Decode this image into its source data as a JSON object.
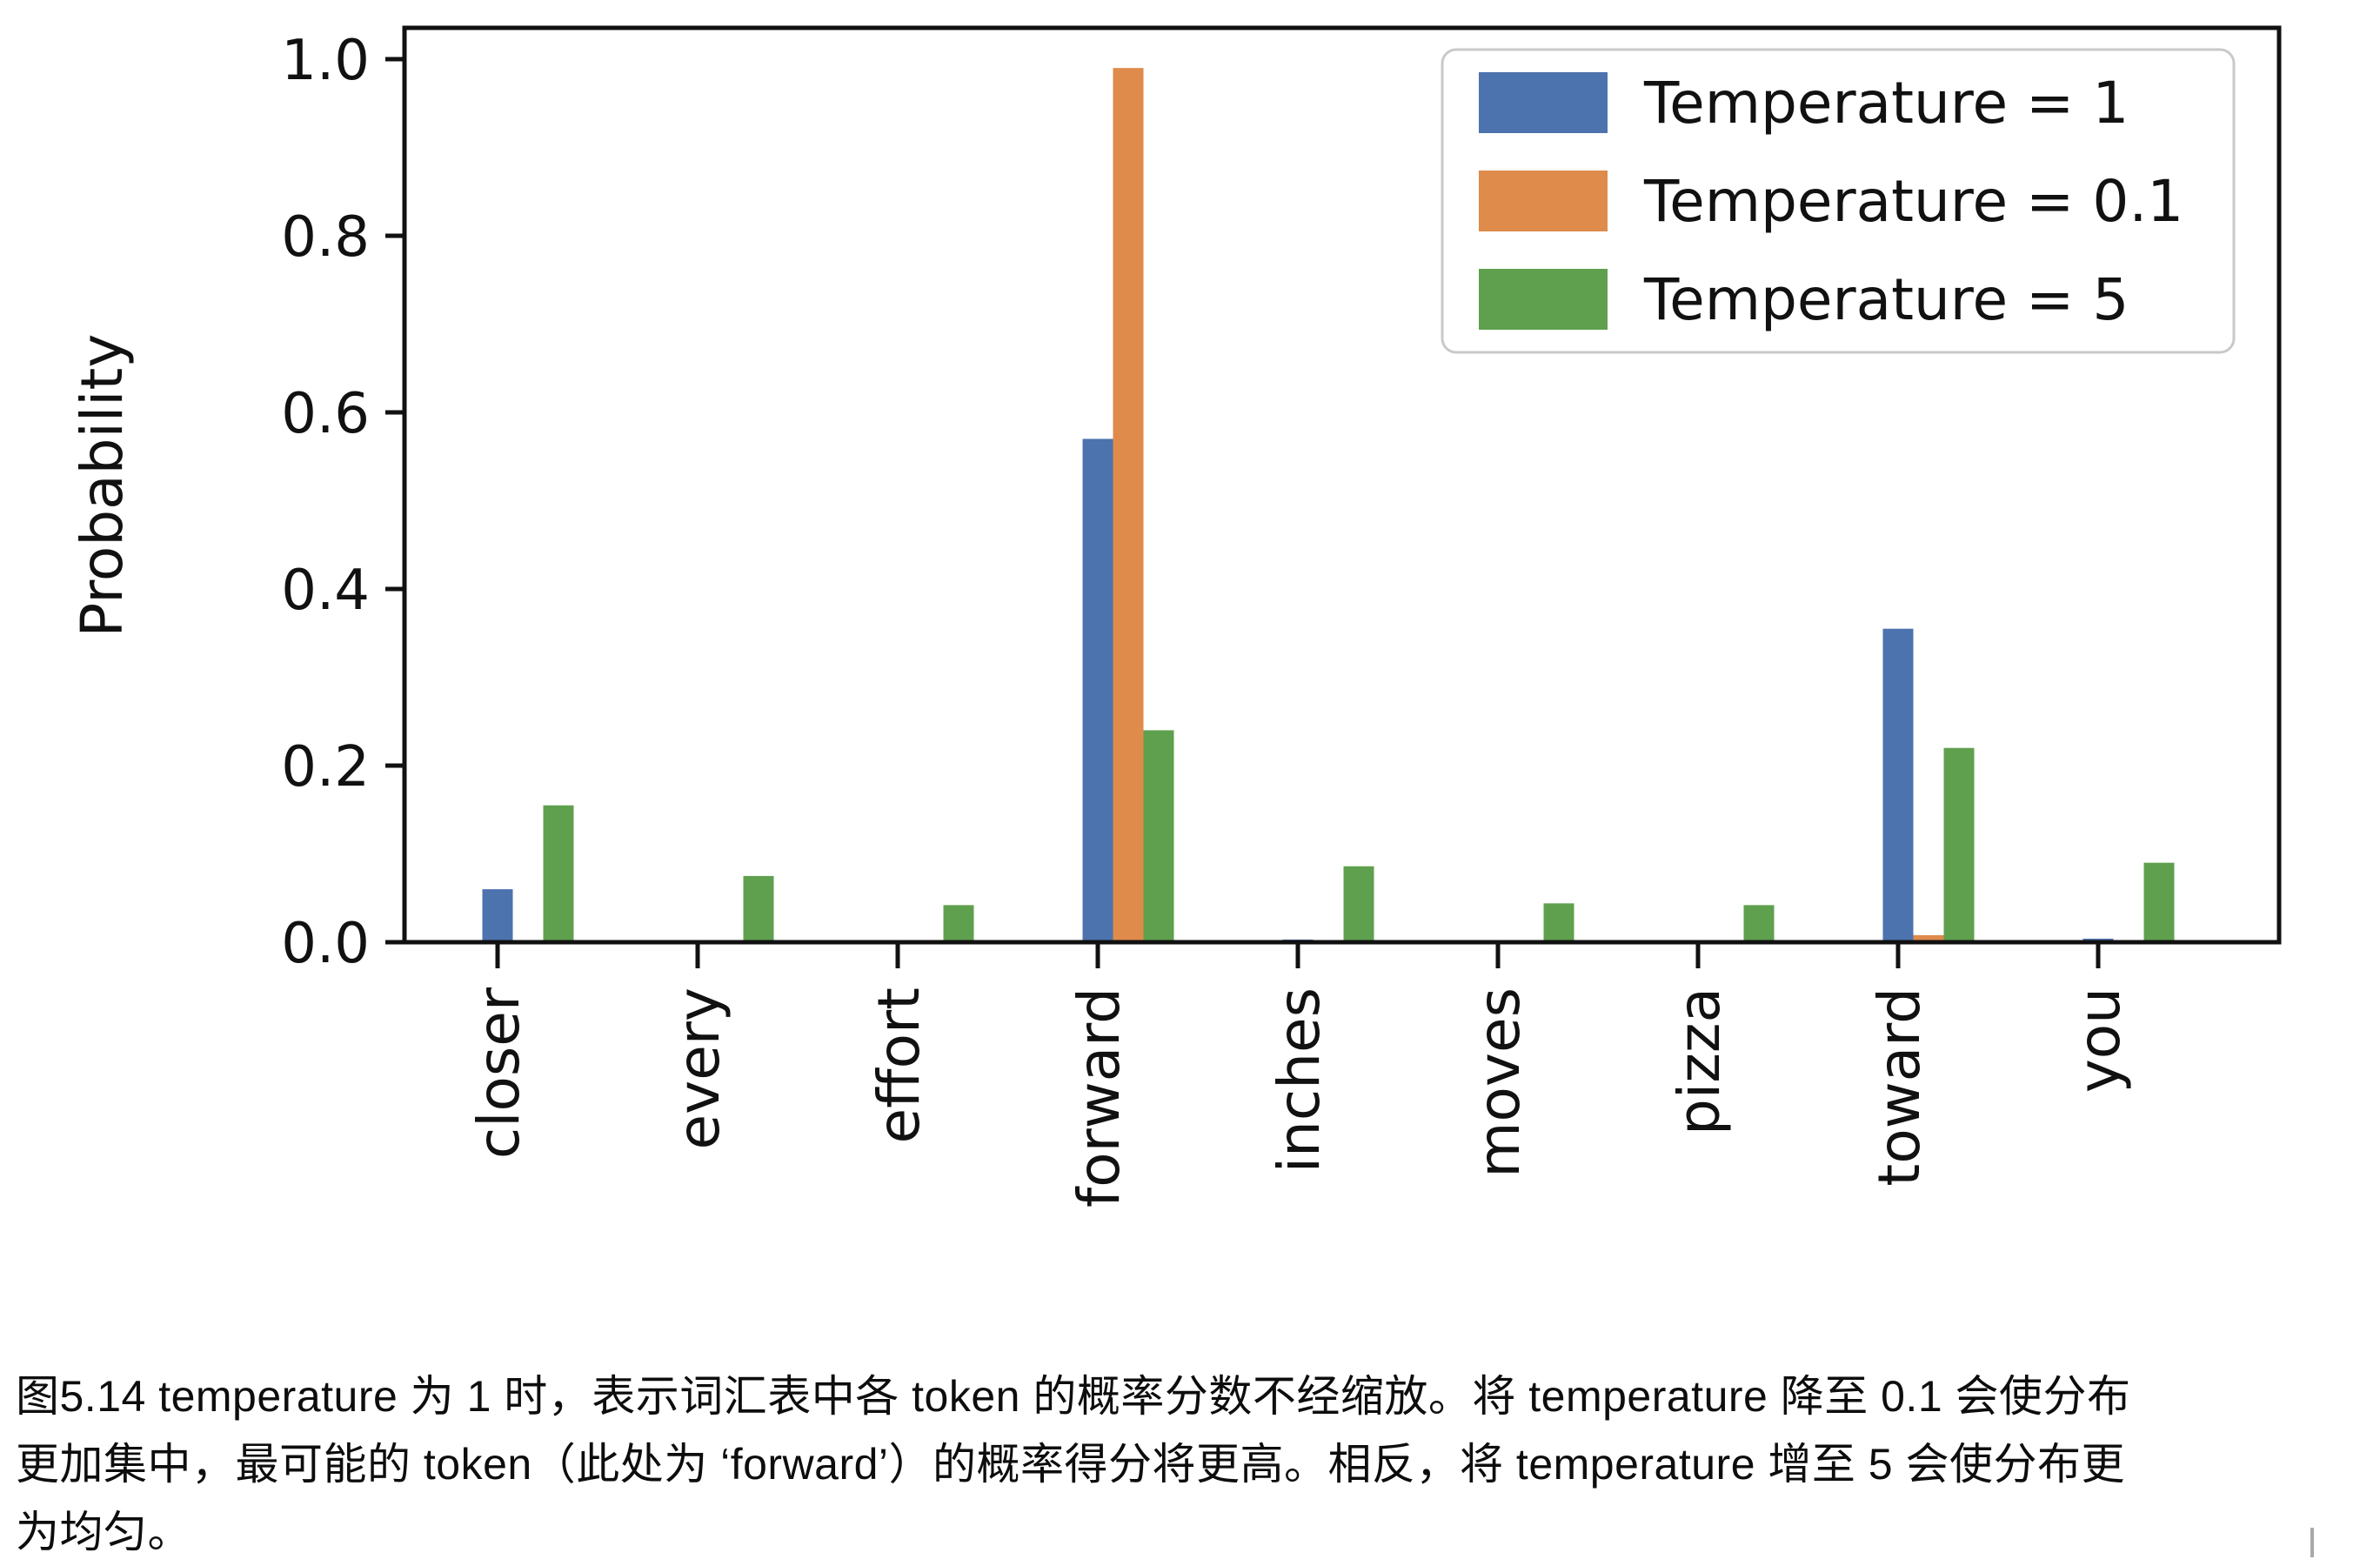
{
  "figure": {
    "ylabel": "Probability",
    "background": "#ffffff",
    "spine_color": "#111111",
    "legend": {
      "border_color": "#c9c9c9",
      "background": "#ffffff",
      "position": "upper right"
    }
  },
  "chart_data": {
    "type": "bar",
    "title": "",
    "xlabel": "",
    "ylabel": "Probability",
    "categories": [
      "closer",
      "every",
      "effort",
      "forward",
      "inches",
      "moves",
      "pizza",
      "toward",
      "you"
    ],
    "series": [
      {
        "name": "Temperature = 1",
        "color": "#4C73AE",
        "values": [
          0.06,
          0,
          0,
          0.57,
          0.003,
          0,
          0,
          0.355,
          0.004
        ]
      },
      {
        "name": "Temperature = 0.1",
        "color": "#DE8B4B",
        "values": [
          0,
          0,
          0,
          0.99,
          0,
          0,
          0,
          0.008,
          0
        ]
      },
      {
        "name": "Temperature = 5",
        "color": "#5FA04E",
        "values": [
          0.155,
          0.075,
          0.042,
          0.24,
          0.086,
          0.044,
          0.042,
          0.22,
          0.09
        ]
      }
    ],
    "yticks": [
      0.0,
      0.2,
      0.4,
      0.6,
      0.8,
      1.0
    ],
    "ytick_labels": [
      "0.0",
      "0.2",
      "0.4",
      "0.6",
      "0.8",
      "1.0"
    ],
    "ylim": [
      0,
      1.035
    ],
    "grid": false,
    "legend_position": "upper right",
    "x_tick_rotation": 90
  },
  "caption": {
    "lines": [
      "图5.14 temperature 为 1 时，表示词汇表中各 token 的概率分数不经缩放。将 temperature 降至 0.1 会使分布",
      "更加集中，最可能的 token（此处为 ‘forward’）的概率得分将更高。相反，将 temperature 增至 5 会使分布更",
      "为均匀。"
    ]
  }
}
